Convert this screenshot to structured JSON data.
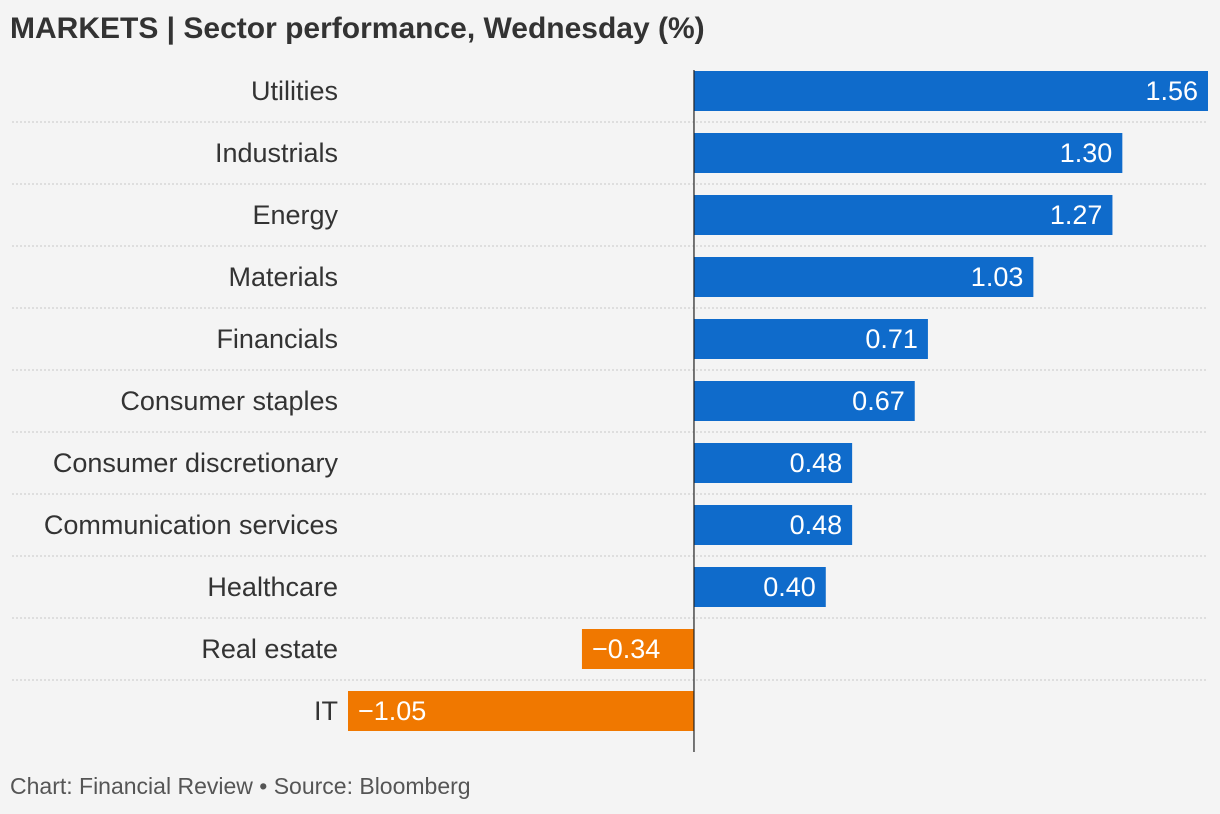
{
  "header": {
    "title": "MARKETS | Sector performance, Wednesday (%)"
  },
  "footer": {
    "credit": "Chart: Financial Review • Source: Bloomberg"
  },
  "colors": {
    "positive": "#0f6bcb",
    "negative": "#f07800",
    "background": "#f4f4f4",
    "text": "#333333",
    "gridline": "#c8c8c8",
    "axis": "#222222"
  },
  "chart_data": {
    "type": "bar",
    "orientation": "horizontal",
    "title": "MARKETS | Sector performance, Wednesday (%)",
    "categories": [
      "Utilities",
      "Industrials",
      "Energy",
      "Materials",
      "Financials",
      "Consumer staples",
      "Consumer discretionary",
      "Communication services",
      "Healthcare",
      "Real estate",
      "IT"
    ],
    "values": [
      1.56,
      1.3,
      1.27,
      1.03,
      0.71,
      0.67,
      0.48,
      0.48,
      0.4,
      -0.34,
      -1.05
    ],
    "value_labels": [
      "1.56",
      "1.30",
      "1.27",
      "1.03",
      "0.71",
      "0.67",
      "0.48",
      "0.48",
      "0.40",
      "−0.34",
      "−1.05"
    ],
    "xlim": [
      -1.05,
      1.56
    ],
    "grid": false,
    "legend": "none",
    "xlabel": "",
    "ylabel": ""
  }
}
